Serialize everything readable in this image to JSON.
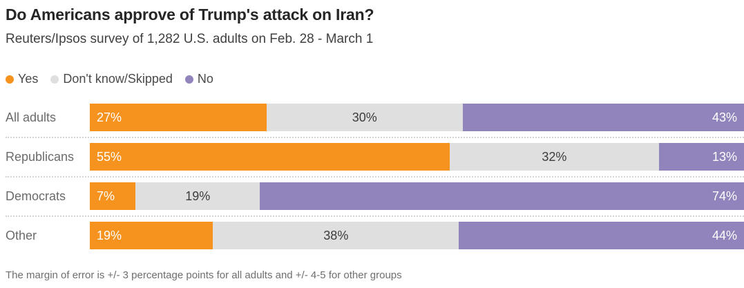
{
  "title": "Do Americans approve of Trump's attack on Iran?",
  "subtitle": "Reuters/Ipsos survey of 1,282 U.S. adults on Feb. 28 - March 1",
  "footnote": "The margin of error is +/- 3 percentage points for all adults and +/- 4-5 for other groups",
  "colors": {
    "yes": "#F6921E",
    "dont_know_skipped": "#DFDFDF",
    "no": "#9184BC",
    "title_text": "#262626",
    "label_text": "#6B6B6B",
    "separator": "#D4D4D4"
  },
  "chart_data": {
    "type": "bar",
    "stacked": true,
    "orientation": "horizontal",
    "title": "Do Americans approve of Trump's attack on Iran?",
    "subtitle": "Reuters/Ipsos survey of 1,282 U.S. adults on Feb. 28 - March 1",
    "categories": [
      "All adults",
      "Republicans",
      "Democrats",
      "Other"
    ],
    "series": [
      {
        "name": "Yes",
        "color": "#F6921E",
        "values": [
          27,
          55,
          7,
          19
        ],
        "labels": [
          "27%",
          "55%",
          "7%",
          "19%"
        ],
        "label_align": "left",
        "label_color": "#FFFFFF"
      },
      {
        "name": "Don't know/Skipped",
        "color": "#DFDFDF",
        "values": [
          30,
          32,
          19,
          38
        ],
        "labels": [
          "30%",
          "32%",
          "19%",
          "38%"
        ],
        "label_align": "center",
        "label_color": "#3C3C3C"
      },
      {
        "name": "No",
        "color": "#9184BC",
        "values": [
          43,
          13,
          74,
          44
        ],
        "labels": [
          "43%",
          "13%",
          "74%",
          "44%"
        ],
        "label_align": "right",
        "label_color": "#FFFFFF"
      }
    ],
    "value_suffix": "%",
    "xlim": [
      0,
      100
    ],
    "legend_position": "top",
    "grid": false,
    "annotations": [
      "The margin of error is +/- 3 percentage points for all adults and +/- 4-5 for other groups"
    ]
  }
}
